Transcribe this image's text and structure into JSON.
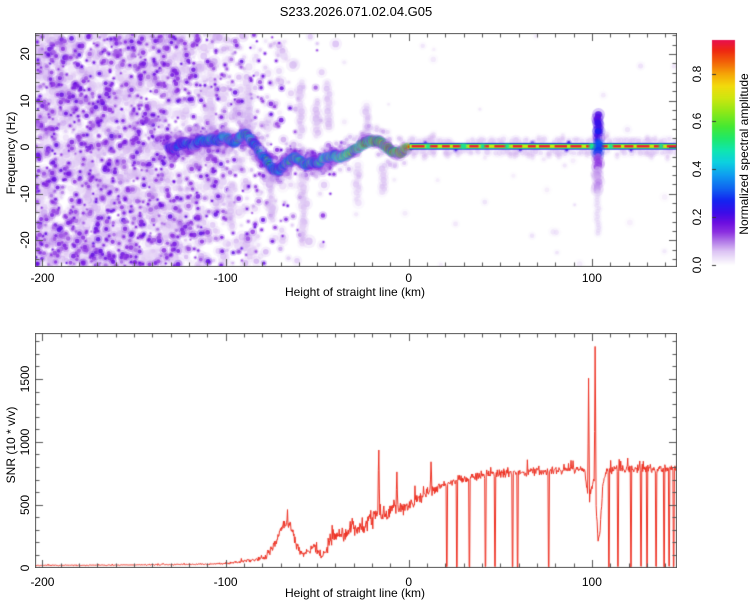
{
  "figure": {
    "background": "#ffffff",
    "frame_color": "#555555",
    "text_color": "#000000"
  },
  "chart_data": [
    {
      "type": "heatmap",
      "title": "S233.2026.071.02.04.G05",
      "xlabel": "Height of straight line (km)",
      "ylabel": "Frequency (Hz)",
      "xlim": [
        -203.8,
        146.2
      ],
      "ylim": [
        -25.6,
        24.4
      ],
      "xticks": [
        -200,
        -100,
        0,
        100
      ],
      "x_minor_step": 10,
      "yticks": [
        -20,
        -10,
        0,
        10,
        20
      ],
      "y_minor_step": 2,
      "grid": false,
      "colorbar": {
        "label": "Normalized spectral amplitude",
        "ticks": [
          0.0,
          0.2,
          0.4,
          0.6,
          0.8
        ],
        "vmin": 0.0,
        "vmax": 0.94,
        "stops": [
          [
            0.0,
            "#ffffff"
          ],
          [
            0.02,
            "#f4ecfb"
          ],
          [
            0.06,
            "#dcc2f4"
          ],
          [
            0.1,
            "#b27ae8"
          ],
          [
            0.14,
            "#8b2fe0"
          ],
          [
            0.18,
            "#6a0de0"
          ],
          [
            0.22,
            "#3c0ce8"
          ],
          [
            0.27,
            "#1423f0"
          ],
          [
            0.32,
            "#0f62f0"
          ],
          [
            0.38,
            "#0e9ff0"
          ],
          [
            0.43,
            "#0cd0e0"
          ],
          [
            0.48,
            "#0fe6b0"
          ],
          [
            0.53,
            "#1fe86a"
          ],
          [
            0.58,
            "#45e832"
          ],
          [
            0.64,
            "#8ce818"
          ],
          [
            0.7,
            "#cfe60f"
          ],
          [
            0.75,
            "#f2da0c"
          ],
          [
            0.8,
            "#f5a507"
          ],
          [
            0.85,
            "#f26208"
          ],
          [
            0.9,
            "#ee2512"
          ],
          [
            0.94,
            "#e8114d"
          ]
        ]
      },
      "noise_profile": [
        [
          -203.8,
          1.0
        ],
        [
          -150,
          1.0
        ],
        [
          -105,
          0.5
        ],
        [
          -60,
          0.08
        ],
        [
          -40,
          0.02
        ],
        [
          146.2,
          0.0
        ]
      ],
      "trace_points": [
        [
          -131,
          0.0,
          0.3
        ],
        [
          -128,
          -0.4,
          0.34
        ],
        [
          -125,
          0.6,
          0.38
        ],
        [
          -122,
          1.1,
          0.42
        ],
        [
          -119,
          0.3,
          0.44
        ],
        [
          -116,
          0.9,
          0.42
        ],
        [
          -113,
          1.6,
          0.47
        ],
        [
          -110,
          1.0,
          0.45
        ],
        [
          -107,
          1.9,
          0.5
        ],
        [
          -104,
          1.3,
          0.47
        ],
        [
          -101,
          2.3,
          0.52
        ],
        [
          -98,
          1.6,
          0.55
        ],
        [
          -95,
          0.9,
          0.5
        ],
        [
          -92,
          2.1,
          0.56
        ],
        [
          -89,
          2.9,
          0.58
        ],
        [
          -86,
          1.6,
          0.52
        ],
        [
          -83,
          0.1,
          0.49
        ],
        [
          -80,
          -1.6,
          0.51
        ],
        [
          -77,
          -3.1,
          0.53
        ],
        [
          -74,
          -4.6,
          0.5
        ],
        [
          -71,
          -5.1,
          0.48
        ],
        [
          -68,
          -3.6,
          0.52
        ],
        [
          -65,
          -2.9,
          0.55
        ],
        [
          -62,
          -1.9,
          0.6
        ],
        [
          -59,
          -2.9,
          0.55
        ],
        [
          -56,
          -3.9,
          0.53
        ],
        [
          -53,
          -3.1,
          0.56
        ],
        [
          -50,
          -3.6,
          0.53
        ],
        [
          -47,
          -2.6,
          0.58
        ],
        [
          -44,
          -2.2,
          0.62
        ],
        [
          -41,
          -1.8,
          0.65
        ],
        [
          -38,
          -2.2,
          0.68
        ],
        [
          -35,
          -1.8,
          0.72
        ],
        [
          -32,
          -1.2,
          0.76
        ],
        [
          -29,
          -0.4,
          0.8
        ],
        [
          -26,
          0.4,
          0.85
        ],
        [
          -23,
          1.0,
          0.88
        ],
        [
          -20,
          1.4,
          0.9
        ],
        [
          -17,
          1.2,
          0.9
        ],
        [
          -14,
          0.8,
          0.88
        ],
        [
          -12,
          0.0,
          0.88
        ],
        [
          -10,
          -0.8,
          0.9
        ],
        [
          -7,
          -1.1,
          0.92
        ],
        [
          -4,
          -1.1,
          0.92
        ],
        [
          -2,
          -0.5,
          0.93
        ],
        [
          0,
          0.2,
          0.94
        ]
      ],
      "flat_line": {
        "x_range": [
          0.5,
          146.2
        ],
        "freq": 0.2,
        "amplitude": 0.95
      },
      "vertical_smear": {
        "x": 103.3,
        "freq_top": 7,
        "freq_bottom": -19
      },
      "faint_streaks": [
        [
          -108,
          12,
          3
        ],
        [
          -97,
          -8,
          -18
        ],
        [
          -87,
          13,
          1
        ],
        [
          -75,
          -6,
          -16
        ],
        [
          -59,
          14,
          2
        ],
        [
          -58,
          -6,
          -21
        ],
        [
          -50,
          10,
          2
        ],
        [
          -44,
          14,
          4
        ],
        [
          -28,
          -4,
          -12
        ],
        [
          -23,
          9,
          2
        ],
        [
          -14,
          -4,
          -10
        ]
      ]
    },
    {
      "type": "line",
      "xlabel": "Height of straight line (km)",
      "ylabel": "SNR (10 * v/v)",
      "xlim": [
        -203.8,
        146.2
      ],
      "ylim": [
        0,
        1862
      ],
      "xticks": [
        -200,
        -100,
        0,
        100
      ],
      "x_minor_step": 10,
      "yticks": [
        0,
        500,
        1000,
        1500
      ],
      "y_minor_step": 100,
      "grid": false,
      "series": [
        {
          "name": "SNR",
          "color": "#ee3123",
          "envelope": [
            [
              -203.8,
              16
            ],
            [
              -190,
              17
            ],
            [
              -175,
              18
            ],
            [
              -160,
              19
            ],
            [
              -145,
              21
            ],
            [
              -130,
              23
            ],
            [
              -118,
              25
            ],
            [
              -110,
              27
            ],
            [
              -104,
              30
            ],
            [
              -98,
              36
            ],
            [
              -93,
              44
            ],
            [
              -89,
              54
            ],
            [
              -85,
              62
            ],
            [
              -81,
              74
            ],
            [
              -78,
              95
            ],
            [
              -75,
              150
            ],
            [
              -72,
              220
            ],
            [
              -70,
              290
            ],
            [
              -68,
              345
            ],
            [
              -66,
              355
            ],
            [
              -64,
              310
            ],
            [
              -62,
              210
            ],
            [
              -60,
              140
            ],
            [
              -58,
              115
            ],
            [
              -56,
              125
            ],
            [
              -54,
              150
            ],
            [
              -52,
              160
            ],
            [
              -50,
              125
            ],
            [
              -48,
              95
            ],
            [
              -46,
              115
            ],
            [
              -44,
              180
            ],
            [
              -42,
              240
            ],
            [
              -40,
              265
            ],
            [
              -38,
              295
            ],
            [
              -36,
              270
            ],
            [
              -34,
              285
            ],
            [
              -32,
              305
            ],
            [
              -30,
              330
            ],
            [
              -28,
              305
            ],
            [
              -26,
              320
            ],
            [
              -24,
              345
            ],
            [
              -22,
              365
            ],
            [
              -20,
              385
            ],
            [
              -18,
              415
            ],
            [
              -16,
              445
            ],
            [
              -14,
              425
            ],
            [
              -12,
              410
            ],
            [
              -10,
              435
            ],
            [
              -8,
              450
            ],
            [
              -6,
              460
            ],
            [
              -4,
              470
            ],
            [
              -2,
              485
            ],
            [
              0,
              505
            ],
            [
              3,
              535
            ],
            [
              6,
              565
            ],
            [
              10,
              595
            ],
            [
              14,
              625
            ],
            [
              18,
              655
            ],
            [
              22,
              675
            ],
            [
              26,
              692
            ],
            [
              30,
              706
            ],
            [
              35,
              720
            ],
            [
              40,
              732
            ],
            [
              45,
              740
            ],
            [
              50,
              746
            ],
            [
              55,
              752
            ],
            [
              60,
              757
            ],
            [
              65,
              761
            ],
            [
              70,
              764
            ],
            [
              75,
              766
            ],
            [
              80,
              770
            ],
            [
              85,
              774
            ],
            [
              90,
              779
            ],
            [
              94,
              788
            ],
            [
              96,
              790
            ],
            [
              97.5,
              600
            ],
            [
              98.8,
              500
            ],
            [
              100,
              650
            ],
            [
              101,
              700
            ],
            [
              102.5,
              450
            ],
            [
              103.3,
              250
            ],
            [
              104.2,
              260
            ],
            [
              105,
              420
            ],
            [
              106,
              650
            ],
            [
              107,
              740
            ],
            [
              108,
              765
            ],
            [
              112,
              780
            ],
            [
              118,
              788
            ],
            [
              124,
              782
            ],
            [
              130,
              788
            ],
            [
              136,
              782
            ],
            [
              142,
              788
            ],
            [
              146.2,
              780
            ]
          ],
          "noise_amplitude": [
            [
              -203.8,
              5
            ],
            [
              -160,
              5
            ],
            [
              -130,
              6
            ],
            [
              -112,
              7
            ],
            [
              -100,
              10
            ],
            [
              -92,
              15
            ],
            [
              -86,
              22
            ],
            [
              -80,
              30
            ],
            [
              -76,
              45
            ],
            [
              -70,
              55
            ],
            [
              -64,
              50
            ],
            [
              -58,
              38
            ],
            [
              -52,
              42
            ],
            [
              -47,
              35
            ],
            [
              -44,
              65
            ],
            [
              -40,
              80
            ],
            [
              -34,
              85
            ],
            [
              -28,
              88
            ],
            [
              -22,
              92
            ],
            [
              -16,
              82
            ],
            [
              -10,
              72
            ],
            [
              -4,
              66
            ],
            [
              2,
              62
            ],
            [
              8,
              58
            ],
            [
              14,
              55
            ],
            [
              20,
              52
            ],
            [
              28,
              46
            ],
            [
              36,
              44
            ],
            [
              45,
              42
            ],
            [
              55,
              40
            ],
            [
              65,
              40
            ],
            [
              75,
              38
            ],
            [
              85,
              38
            ],
            [
              95,
              36
            ],
            [
              99,
              45
            ],
            [
              103,
              60
            ],
            [
              107,
              45
            ],
            [
              115,
              40
            ],
            [
              125,
              40
            ],
            [
              135,
              42
            ],
            [
              146.2,
              42
            ]
          ],
          "spikes": [
            [
              -16.4,
              1010
            ],
            [
              -6.5,
              780
            ],
            [
              12.2,
              860
            ],
            [
              98.2,
              1510
            ],
            [
              101.8,
              1862
            ]
          ],
          "dropouts": [
            20.8,
            26.3,
            33,
            41.8,
            47,
            56.7,
            59.4,
            76.5,
            109.2,
            114.3,
            121.4,
            126.9,
            130.2,
            135.1,
            139.5,
            142.2,
            144.6
          ]
        }
      ]
    }
  ]
}
